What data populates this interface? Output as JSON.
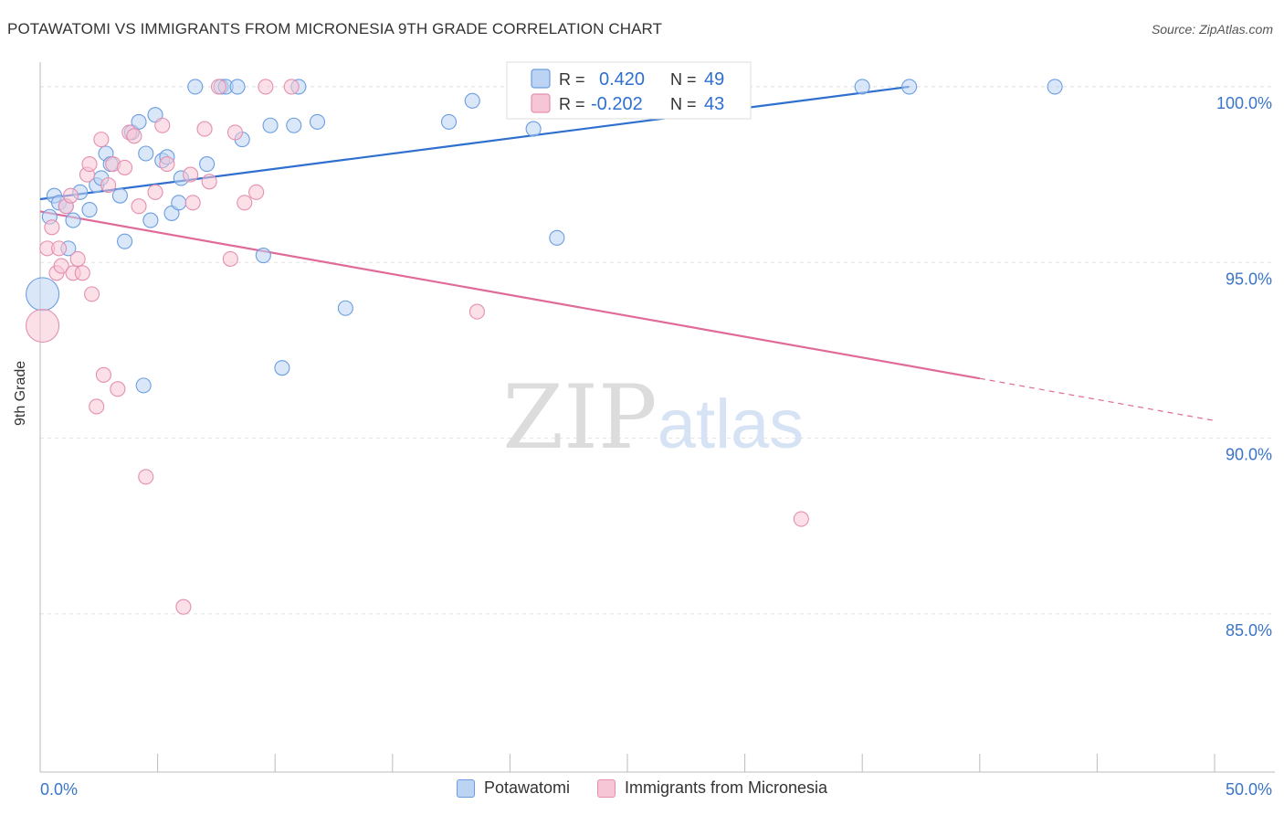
{
  "title": "POTAWATOMI VS IMMIGRANTS FROM MICRONESIA 9TH GRADE CORRELATION CHART",
  "source": "Source: ZipAtlas.com",
  "watermark": {
    "zip": "ZIP",
    "atlas": "atlas"
  },
  "legend_top": [
    {
      "r_label": "R =",
      "r_value": "0.420",
      "n_label": "N =",
      "n_value": "49"
    },
    {
      "r_label": "R =",
      "r_value": "-0.202",
      "n_label": "N =",
      "n_value": "43"
    }
  ],
  "chart_data": {
    "type": "scatter",
    "title": "POTAWATOMI VS IMMIGRANTS FROM MICRONESIA 9TH GRADE CORRELATION CHART",
    "xlabel": "",
    "ylabel": "9th Grade",
    "xlim": [
      0,
      50
    ],
    "ylim": [
      80.5,
      100.7
    ],
    "x_tick_labels": [
      "0.0%",
      "50.0%"
    ],
    "y_ticks": [
      85,
      90,
      95,
      100
    ],
    "y_tick_labels": [
      "85.0%",
      "90.0%",
      "95.0%",
      "100.0%"
    ],
    "grid": true,
    "legend_position": "top-center",
    "series": [
      {
        "name": "Potawatomi",
        "color": "#6a9de0",
        "fill": "#bcd3f3",
        "line_color": "#2f6fcf",
        "trend": {
          "x0": 0,
          "y0": 96.8,
          "x1": 37,
          "y1": 100
        },
        "points": [
          [
            0.1,
            94.1,
            1
          ],
          [
            0.4,
            96.3,
            0
          ],
          [
            0.6,
            96.9,
            0
          ],
          [
            0.8,
            96.7,
            0
          ],
          [
            1.1,
            96.6,
            0
          ],
          [
            1.2,
            95.4,
            0
          ],
          [
            1.4,
            96.2,
            0
          ],
          [
            1.7,
            97.0,
            0
          ],
          [
            2.1,
            96.5,
            0
          ],
          [
            2.4,
            97.2,
            0
          ],
          [
            2.6,
            97.4,
            0
          ],
          [
            2.8,
            98.1,
            0
          ],
          [
            3.0,
            97.8,
            0
          ],
          [
            3.4,
            96.9,
            0
          ],
          [
            3.6,
            95.6,
            0
          ],
          [
            3.9,
            98.7,
            0
          ],
          [
            4.2,
            99.0,
            0
          ],
          [
            4.4,
            91.5,
            0
          ],
          [
            4.5,
            98.1,
            0
          ],
          [
            4.7,
            96.2,
            0
          ],
          [
            4.9,
            99.2,
            0
          ],
          [
            5.2,
            97.9,
            0
          ],
          [
            5.4,
            98.0,
            0
          ],
          [
            5.6,
            96.4,
            0
          ],
          [
            5.9,
            96.7,
            0
          ],
          [
            6.0,
            97.4,
            0
          ],
          [
            6.6,
            100,
            0
          ],
          [
            7.1,
            97.8,
            0
          ],
          [
            7.7,
            100,
            0
          ],
          [
            7.9,
            100,
            0
          ],
          [
            8.4,
            100,
            0
          ],
          [
            8.6,
            98.5,
            0
          ],
          [
            9.5,
            95.2,
            0
          ],
          [
            9.8,
            98.9,
            0
          ],
          [
            10.3,
            92.0,
            0
          ],
          [
            10.8,
            98.9,
            0
          ],
          [
            11.0,
            100,
            0
          ],
          [
            11.8,
            99.0,
            0
          ],
          [
            13.0,
            93.7,
            0
          ],
          [
            17.4,
            99.0,
            0
          ],
          [
            18.4,
            99.6,
            0
          ],
          [
            21.0,
            98.8,
            0
          ],
          [
            22.0,
            95.7,
            0
          ],
          [
            26.0,
            100,
            0
          ],
          [
            35.0,
            100,
            0
          ],
          [
            37.0,
            100,
            0
          ],
          [
            43.2,
            100,
            0
          ]
        ]
      },
      {
        "name": "Immigrants from Micronesia",
        "color": "#e58fb0",
        "fill": "#f7c6d6",
        "line_color": "#e06a98",
        "trend": {
          "x0": 0,
          "y0": 96.45,
          "x1": 40,
          "y1": 91.7
        },
        "trend_dashed": {
          "x0": 40,
          "y0": 91.7,
          "x1": 50,
          "y1": 90.5
        },
        "points": [
          [
            0.1,
            93.2,
            1
          ],
          [
            0.3,
            95.4,
            0
          ],
          [
            0.5,
            96.0,
            0
          ],
          [
            0.7,
            94.7,
            0
          ],
          [
            0.8,
            95.4,
            0
          ],
          [
            0.9,
            94.9,
            0
          ],
          [
            1.1,
            96.6,
            0
          ],
          [
            1.3,
            96.9,
            0
          ],
          [
            1.4,
            94.7,
            0
          ],
          [
            1.6,
            95.1,
            0
          ],
          [
            1.8,
            94.7,
            0
          ],
          [
            2.0,
            97.5,
            0
          ],
          [
            2.1,
            97.8,
            0
          ],
          [
            2.2,
            94.1,
            0
          ],
          [
            2.4,
            90.9,
            0
          ],
          [
            2.6,
            98.5,
            0
          ],
          [
            2.7,
            91.8,
            0
          ],
          [
            2.9,
            97.2,
            0
          ],
          [
            3.1,
            97.8,
            0
          ],
          [
            3.3,
            91.4,
            0
          ],
          [
            3.6,
            97.7,
            0
          ],
          [
            3.8,
            98.7,
            0
          ],
          [
            4.0,
            98.6,
            0
          ],
          [
            4.2,
            96.6,
            0
          ],
          [
            4.5,
            88.9,
            0
          ],
          [
            4.9,
            97.0,
            0
          ],
          [
            5.2,
            98.9,
            0
          ],
          [
            5.4,
            97.8,
            0
          ],
          [
            6.1,
            85.2,
            0
          ],
          [
            6.4,
            97.5,
            0
          ],
          [
            6.5,
            96.7,
            0
          ],
          [
            7.0,
            98.8,
            0
          ],
          [
            7.2,
            97.3,
            0
          ],
          [
            7.6,
            100,
            0
          ],
          [
            8.1,
            95.1,
            0
          ],
          [
            8.3,
            98.7,
            0
          ],
          [
            8.7,
            96.7,
            0
          ],
          [
            9.2,
            97.0,
            0
          ],
          [
            9.6,
            100,
            0
          ],
          [
            10.7,
            100,
            0
          ],
          [
            18.6,
            93.6,
            0
          ],
          [
            32.4,
            87.7,
            0
          ]
        ]
      }
    ]
  }
}
